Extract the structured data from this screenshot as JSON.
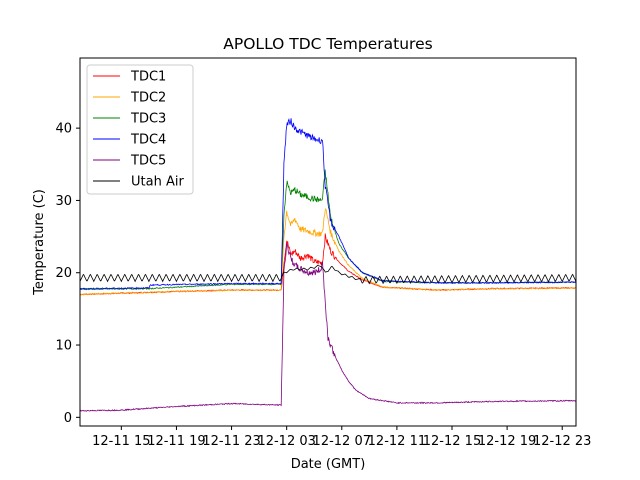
{
  "chart_data": {
    "type": "line",
    "title": "APOLLO TDC Temperatures",
    "xlabel": "Date (GMT)",
    "ylabel": "Temperature (C)",
    "x_unit": "hours since 12-11 00:00 GMT",
    "xlim": [
      12.0,
      48.0
    ],
    "ylim": [
      -1.2,
      49.7
    ],
    "yticks": [
      0,
      10,
      20,
      30,
      40
    ],
    "xticks": [
      {
        "hour": 15,
        "label": "12-11 15"
      },
      {
        "hour": 19,
        "label": "12-11 19"
      },
      {
        "hour": 23,
        "label": "12-11 23"
      },
      {
        "hour": 27,
        "label": "12-12 03"
      },
      {
        "hour": 31,
        "label": "12-12 07"
      },
      {
        "hour": 35,
        "label": "12-12 11"
      },
      {
        "hour": 39,
        "label": "12-12 15"
      },
      {
        "hour": 43,
        "label": "12-12 19"
      },
      {
        "hour": 47,
        "label": "12-12 23"
      }
    ],
    "grid": false,
    "legend_position": "top-left",
    "series": [
      {
        "name": "TDC1",
        "color": "#ff0000",
        "x": [
          12.0,
          19.0,
          23.0,
          26.6,
          26.8,
          27.0,
          27.3,
          27.6,
          28.0,
          28.5,
          29.0,
          29.5,
          29.6,
          29.8,
          30.2,
          30.8,
          31.5,
          32.5,
          34.0,
          38.0,
          42.0,
          48.0
        ],
        "y": [
          17.0,
          17.4,
          17.6,
          17.6,
          21.5,
          24.5,
          22.5,
          23.0,
          22.0,
          22.5,
          21.5,
          21.4,
          21.5,
          25.0,
          23.0,
          21.5,
          20.2,
          19.0,
          18.0,
          17.6,
          17.8,
          17.9
        ]
      },
      {
        "name": "TDC2",
        "color": "#ffa500",
        "x": [
          12.0,
          19.0,
          23.0,
          26.6,
          26.8,
          27.0,
          27.3,
          27.6,
          28.0,
          28.5,
          29.0,
          29.5,
          29.6,
          29.8,
          30.2,
          30.8,
          31.5,
          32.5,
          34.0,
          38.0,
          42.0,
          48.0
        ],
        "y": [
          17.0,
          17.4,
          17.6,
          17.6,
          25.0,
          28.5,
          26.5,
          27.5,
          26.0,
          25.8,
          25.5,
          25.4,
          25.5,
          29.0,
          25.5,
          23.0,
          21.0,
          19.2,
          18.0,
          17.6,
          17.8,
          17.9
        ]
      },
      {
        "name": "TDC3",
        "color": "#008000",
        "x": [
          12.0,
          17.0,
          19.0,
          23.0,
          26.6,
          26.8,
          27.0,
          27.3,
          27.6,
          28.0,
          28.5,
          29.0,
          29.5,
          29.6,
          29.8,
          30.2,
          30.8,
          31.5,
          32.5,
          34.0,
          38.0,
          42.0,
          48.0
        ],
        "y": [
          17.7,
          17.8,
          18.0,
          18.4,
          18.4,
          28.0,
          32.5,
          31.0,
          31.5,
          30.8,
          30.5,
          30.2,
          30.0,
          30.2,
          34.0,
          27.5,
          24.0,
          22.0,
          20.0,
          18.8,
          18.6,
          18.6,
          18.7
        ]
      },
      {
        "name": "TDC4",
        "color": "#0000ff",
        "x": [
          12.0,
          17.0,
          17.1,
          23.0,
          26.6,
          26.8,
          27.0,
          27.3,
          27.6,
          28.0,
          28.5,
          29.0,
          29.5,
          29.6,
          29.8,
          30.2,
          30.8,
          31.5,
          32.5,
          34.0,
          38.0,
          42.0,
          48.0
        ],
        "y": [
          17.8,
          17.9,
          18.3,
          18.5,
          18.5,
          35.0,
          40.5,
          41.0,
          40.0,
          39.5,
          39.0,
          38.5,
          38.3,
          38.4,
          32.0,
          27.0,
          25.0,
          22.0,
          20.0,
          18.9,
          18.6,
          18.6,
          18.7
        ]
      },
      {
        "name": "TDC5",
        "color": "#800080",
        "x": [
          12.0,
          15.0,
          19.0,
          23.0,
          26.4,
          26.6,
          26.8,
          27.0,
          27.3,
          27.6,
          28.0,
          28.5,
          29.0,
          29.5,
          29.6,
          29.8,
          30.0,
          30.5,
          31.0,
          31.5,
          32.0,
          33.0,
          35.0,
          38.0,
          42.0,
          48.0
        ],
        "y": [
          0.9,
          1.0,
          1.5,
          1.9,
          1.7,
          1.7,
          20.0,
          24.0,
          22.0,
          21.0,
          20.5,
          20.0,
          20.0,
          20.5,
          21.5,
          16.0,
          11.0,
          8.5,
          6.5,
          5.0,
          3.8,
          2.6,
          2.0,
          2.0,
          2.2,
          2.3
        ]
      },
      {
        "name": "Utah Air",
        "color": "#000000",
        "x": [
          12.0,
          26.6,
          26.8,
          27.5,
          28.5,
          29.5,
          29.8,
          30.3,
          30.8,
          31.5,
          32.3,
          48.0
        ],
        "y": [
          19.3,
          19.3,
          20.0,
          20.5,
          20.5,
          21.0,
          20.0,
          20.8,
          20.0,
          19.5,
          19.0,
          19.3
        ],
        "oscillation": {
          "amplitude": 0.5,
          "period_hours": 0.5
        }
      }
    ]
  }
}
